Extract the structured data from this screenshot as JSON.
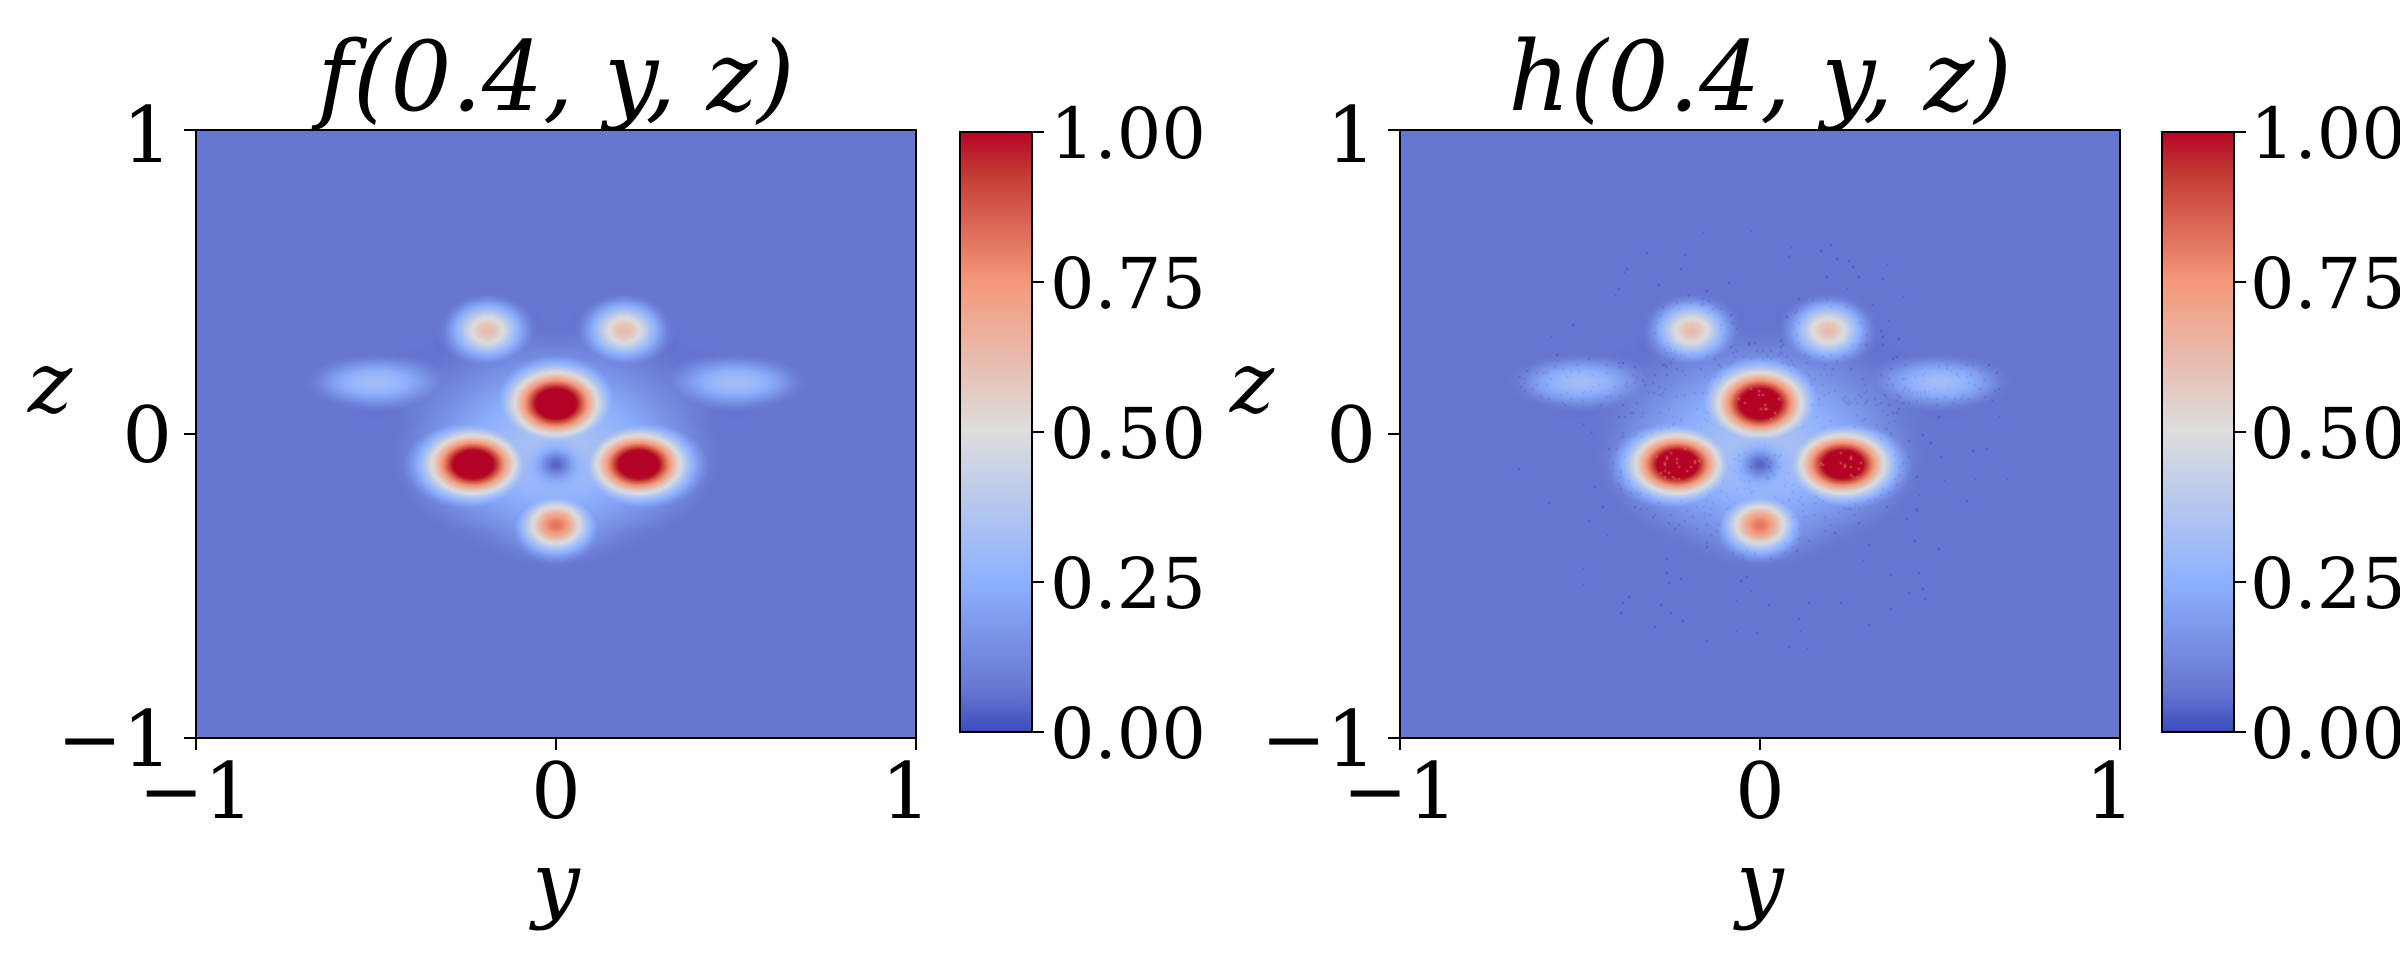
{
  "colors": {
    "cold": "#6777d1",
    "mid": "#dddddd",
    "hot": "#b40426",
    "colormap": "coolwarm"
  },
  "chart_data": [
    {
      "type": "heatmap",
      "title": "f(0.4, y, z)",
      "xlabel": "y",
      "ylabel": "z",
      "xlim": [
        -1,
        1
      ],
      "ylim": [
        -1,
        1
      ],
      "xticks": [
        "−1",
        "0",
        "1"
      ],
      "yticks": [
        "−1",
        "0",
        "1"
      ],
      "colorbar": {
        "min": 0,
        "max": 1,
        "ticks": [
          "0.00",
          "0.25",
          "0.50",
          "0.75",
          "1.00"
        ]
      },
      "noisy": false,
      "field": {
        "background": 0,
        "blobs": [
          {
            "y": 0.0,
            "z": 0.1,
            "value": 1.0
          },
          {
            "y": -0.22,
            "z": -0.1,
            "value": 1.0
          },
          {
            "y": 0.22,
            "z": -0.1,
            "value": 1.0
          },
          {
            "y": 0.0,
            "z": -0.3,
            "value": 0.8
          },
          {
            "y": 0.0,
            "z": -0.1,
            "value": 0.08
          },
          {
            "y": -0.2,
            "z": 0.35,
            "value": 0.6
          },
          {
            "y": 0.2,
            "z": 0.35,
            "value": 0.6
          },
          {
            "y": -0.55,
            "z": 0.18,
            "value": 0.3
          },
          {
            "y": 0.55,
            "z": 0.18,
            "value": 0.3
          }
        ]
      }
    },
    {
      "type": "heatmap",
      "title": "h(0.4, y, z)",
      "xlabel": "y",
      "ylabel": "z",
      "xlim": [
        -1,
        1
      ],
      "ylim": [
        -1,
        1
      ],
      "xticks": [
        "−1",
        "0",
        "1"
      ],
      "yticks": [
        "−1",
        "0",
        "1"
      ],
      "colorbar": {
        "min": 0,
        "max": 1,
        "ticks": [
          "0.00",
          "0.25",
          "0.50",
          "0.75",
          "1.00"
        ]
      },
      "noisy": true,
      "field": {
        "background": 0,
        "blobs": [
          {
            "y": 0.0,
            "z": 0.1,
            "value": 1.0
          },
          {
            "y": -0.22,
            "z": -0.1,
            "value": 1.0
          },
          {
            "y": 0.22,
            "z": -0.1,
            "value": 1.0
          },
          {
            "y": 0.0,
            "z": -0.3,
            "value": 0.8
          },
          {
            "y": 0.0,
            "z": -0.1,
            "value": 0.08
          },
          {
            "y": -0.2,
            "z": 0.35,
            "value": 0.6
          },
          {
            "y": 0.2,
            "z": 0.35,
            "value": 0.6
          },
          {
            "y": -0.55,
            "z": 0.18,
            "value": 0.3
          },
          {
            "y": 0.55,
            "z": 0.18,
            "value": 0.3
          }
        ]
      }
    }
  ]
}
